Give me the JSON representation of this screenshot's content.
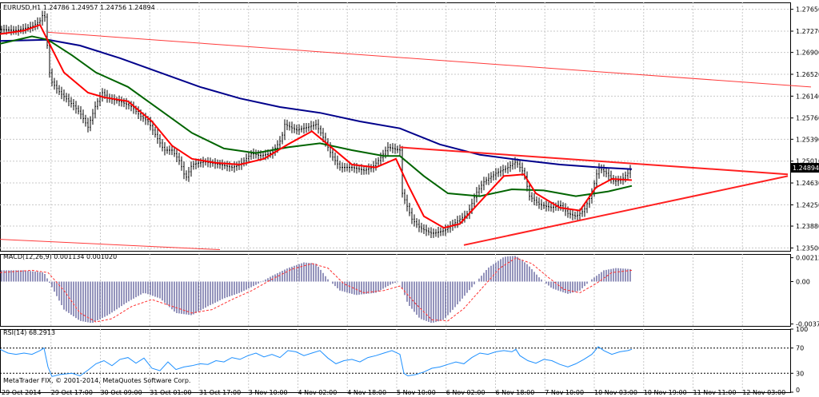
{
  "chart_data": {
    "type": "line",
    "symbol": "EURUSD,H1",
    "header": "EURUSD,H1   1.24786  1.24957  1.24756  1.24894",
    "price_ticks": [
      "1.27650",
      "1.27270",
      "1.26900",
      "1.26520",
      "1.26140",
      "1.25760",
      "1.25390",
      "1.25010",
      "1.24630",
      "1.24250",
      "1.23880",
      "1.23500"
    ],
    "price_ylim": [
      1.2345,
      1.2777
    ],
    "current_price": "1.24894",
    "x_ticks": [
      "29 Oct 2014",
      "29 Oct 17:00",
      "30 Oct 09:00",
      "31 Oct 01:00",
      "31 Oct 17:00",
      "3 Nov 10:00",
      "4 Nov 02:00",
      "4 Nov 18:00",
      "5 Nov 10:00",
      "6 Nov 02:00",
      "6 Nov 18:00",
      "7 Nov 10:00",
      "10 Nov 03:00",
      "10 Nov 19:00",
      "11 Nov 11:00",
      "12 Nov 03:00"
    ],
    "close": [
      [
        0,
        1.273
      ],
      [
        20,
        1.2728
      ],
      [
        40,
        1.2735
      ],
      [
        50,
        1.2745
      ],
      [
        55,
        1.276
      ],
      [
        58,
        1.2735
      ],
      [
        60,
        1.267
      ],
      [
        64,
        1.264
      ],
      [
        75,
        1.262
      ],
      [
        90,
        1.26
      ],
      [
        100,
        1.2585
      ],
      [
        110,
        1.256
      ],
      [
        120,
        1.26
      ],
      [
        128,
        1.262
      ],
      [
        135,
        1.261
      ],
      [
        150,
        1.2605
      ],
      [
        165,
        1.2595
      ],
      [
        175,
        1.258
      ],
      [
        185,
        1.257
      ],
      [
        195,
        1.2545
      ],
      [
        205,
        1.252
      ],
      [
        215,
        1.252
      ],
      [
        225,
        1.25
      ],
      [
        232,
        1.247
      ],
      [
        240,
        1.2495
      ],
      [
        255,
        1.25
      ],
      [
        275,
        1.2495
      ],
      [
        290,
        1.249
      ],
      [
        300,
        1.2495
      ],
      [
        315,
        1.2515
      ],
      [
        325,
        1.251
      ],
      [
        340,
        1.2515
      ],
      [
        352,
        1.254
      ],
      [
        356,
        1.2565
      ],
      [
        370,
        1.2555
      ],
      [
        385,
        1.256
      ],
      [
        395,
        1.2565
      ],
      [
        405,
        1.254
      ],
      [
        415,
        1.251
      ],
      [
        425,
        1.249
      ],
      [
        440,
        1.249
      ],
      [
        455,
        1.2485
      ],
      [
        465,
        1.249
      ],
      [
        475,
        1.2505
      ],
      [
        485,
        1.2525
      ],
      [
        500,
        1.252
      ],
      [
        503,
        1.2445
      ],
      [
        507,
        1.243
      ],
      [
        515,
        1.24
      ],
      [
        525,
        1.2385
      ],
      [
        540,
        1.2375
      ],
      [
        555,
        1.238
      ],
      [
        565,
        1.239
      ],
      [
        575,
        1.24
      ],
      [
        585,
        1.241
      ],
      [
        595,
        1.2445
      ],
      [
        605,
        1.2465
      ],
      [
        620,
        1.248
      ],
      [
        635,
        1.249
      ],
      [
        645,
        1.25
      ],
      [
        655,
        1.248
      ],
      [
        662,
        1.244
      ],
      [
        675,
        1.2425
      ],
      [
        690,
        1.242
      ],
      [
        700,
        1.2425
      ],
      [
        710,
        1.241
      ],
      [
        720,
        1.2405
      ],
      [
        730,
        1.2415
      ],
      [
        740,
        1.2445
      ],
      [
        748,
        1.249
      ],
      [
        758,
        1.248
      ],
      [
        768,
        1.2465
      ],
      [
        778,
        1.247
      ],
      [
        785,
        1.248
      ],
      [
        790,
        1.2489
      ]
    ],
    "ma_red": [
      [
        0,
        1.2722
      ],
      [
        30,
        1.2728
      ],
      [
        50,
        1.2738
      ],
      [
        60,
        1.271
      ],
      [
        80,
        1.2655
      ],
      [
        110,
        1.262
      ],
      [
        130,
        1.2612
      ],
      [
        160,
        1.2605
      ],
      [
        190,
        1.257
      ],
      [
        215,
        1.2528
      ],
      [
        240,
        1.2505
      ],
      [
        270,
        1.2498
      ],
      [
        300,
        1.2495
      ],
      [
        330,
        1.2505
      ],
      [
        360,
        1.253
      ],
      [
        390,
        1.2553
      ],
      [
        410,
        1.253
      ],
      [
        440,
        1.2495
      ],
      [
        470,
        1.249
      ],
      [
        495,
        1.2505
      ],
      [
        510,
        1.246
      ],
      [
        530,
        1.2405
      ],
      [
        555,
        1.2385
      ],
      [
        575,
        1.2392
      ],
      [
        600,
        1.243
      ],
      [
        630,
        1.2475
      ],
      [
        655,
        1.2478
      ],
      [
        670,
        1.2445
      ],
      [
        700,
        1.242
      ],
      [
        725,
        1.2415
      ],
      [
        745,
        1.2455
      ],
      [
        765,
        1.247
      ],
      [
        790,
        1.2468
      ]
    ],
    "ma_green": [
      [
        0,
        1.2705
      ],
      [
        40,
        1.2718
      ],
      [
        60,
        1.2712
      ],
      [
        90,
        1.2685
      ],
      [
        120,
        1.2655
      ],
      [
        160,
        1.263
      ],
      [
        200,
        1.259
      ],
      [
        240,
        1.255
      ],
      [
        280,
        1.2523
      ],
      [
        320,
        1.2515
      ],
      [
        360,
        1.2525
      ],
      [
        400,
        1.2532
      ],
      [
        440,
        1.252
      ],
      [
        480,
        1.251
      ],
      [
        500,
        1.251
      ],
      [
        530,
        1.2475
      ],
      [
        560,
        1.2445
      ],
      [
        600,
        1.244
      ],
      [
        640,
        1.2452
      ],
      [
        680,
        1.245
      ],
      [
        720,
        1.244
      ],
      [
        760,
        1.2448
      ],
      [
        790,
        1.2458
      ]
    ],
    "ma_blue": [
      [
        0,
        1.271
      ],
      [
        60,
        1.2712
      ],
      [
        100,
        1.2702
      ],
      [
        150,
        1.268
      ],
      [
        200,
        1.2655
      ],
      [
        250,
        1.263
      ],
      [
        300,
        1.261
      ],
      [
        350,
        1.2595
      ],
      [
        400,
        1.2585
      ],
      [
        450,
        1.257
      ],
      [
        500,
        1.2558
      ],
      [
        550,
        1.253
      ],
      [
        600,
        1.2512
      ],
      [
        650,
        1.2503
      ],
      [
        700,
        1.2495
      ],
      [
        750,
        1.249
      ],
      [
        790,
        1.2487
      ]
    ],
    "trendlines": [
      {
        "from": [
          60,
          1.2725
        ],
        "to": [
          1014,
          1.263
        ],
        "color": "#ff3b3b",
        "width": 1
      },
      {
        "from": [
          0,
          1.2365
        ],
        "to": [
          275,
          1.2347
        ],
        "color": "#ff3b3b",
        "width": 1
      },
      {
        "from": [
          500,
          1.2525
        ],
        "to": [
          985,
          1.2478
        ],
        "color": "#ff2020",
        "width": 2
      },
      {
        "from": [
          580,
          1.2355
        ],
        "to": [
          985,
          1.2475
        ],
        "color": "#ff2020",
        "width": 2
      }
    ],
    "macd": {
      "label": "MACD(12,26,9) 0.001134 0.001020",
      "ticks": [
        "0.00212",
        "0.00",
        "-0.003781"
      ],
      "ylim": [
        -0.00395,
        0.00245
      ],
      "hist": [
        [
          0,
          0.001
        ],
        [
          30,
          0.001
        ],
        [
          55,
          0.0008
        ],
        [
          65,
          -0.0005
        ],
        [
          80,
          -0.0025
        ],
        [
          100,
          -0.0035
        ],
        [
          115,
          -0.0037
        ],
        [
          135,
          -0.003
        ],
        [
          160,
          -0.0018
        ],
        [
          180,
          -0.001
        ],
        [
          200,
          -0.0015
        ],
        [
          220,
          -0.0028
        ],
        [
          240,
          -0.003
        ],
        [
          260,
          -0.0022
        ],
        [
          280,
          -0.0015
        ],
        [
          300,
          -0.001
        ],
        [
          320,
          -0.0003
        ],
        [
          340,
          0.0005
        ],
        [
          360,
          0.0012
        ],
        [
          380,
          0.0017
        ],
        [
          395,
          0.0016
        ],
        [
          410,
          0.0002
        ],
        [
          425,
          -0.0008
        ],
        [
          445,
          -0.0012
        ],
        [
          470,
          -0.001
        ],
        [
          490,
          -0.0002
        ],
        [
          500,
          0.0
        ],
        [
          510,
          -0.002
        ],
        [
          525,
          -0.0033
        ],
        [
          540,
          -0.0037
        ],
        [
          555,
          -0.0034
        ],
        [
          570,
          -0.0022
        ],
        [
          590,
          -0.0005
        ],
        [
          610,
          0.0012
        ],
        [
          630,
          0.0022
        ],
        [
          645,
          0.0023
        ],
        [
          660,
          0.0015
        ],
        [
          675,
          0.0003
        ],
        [
          690,
          -0.0006
        ],
        [
          710,
          -0.0011
        ],
        [
          725,
          -0.0008
        ],
        [
          740,
          0.0002
        ],
        [
          755,
          0.001
        ],
        [
          770,
          0.0012
        ],
        [
          790,
          0.0011
        ]
      ],
      "signal": [
        [
          0,
          0.0008
        ],
        [
          40,
          0.001
        ],
        [
          60,
          0.0008
        ],
        [
          80,
          -0.0008
        ],
        [
          100,
          -0.0028
        ],
        [
          120,
          -0.0036
        ],
        [
          140,
          -0.0033
        ],
        [
          165,
          -0.0022
        ],
        [
          190,
          -0.0016
        ],
        [
          215,
          -0.0022
        ],
        [
          240,
          -0.0028
        ],
        [
          265,
          -0.0025
        ],
        [
          290,
          -0.0016
        ],
        [
          315,
          -0.0008
        ],
        [
          340,
          0.0002
        ],
        [
          365,
          0.0011
        ],
        [
          390,
          0.0016
        ],
        [
          410,
          0.0012
        ],
        [
          430,
          -0.0002
        ],
        [
          455,
          -0.001
        ],
        [
          480,
          -0.0008
        ],
        [
          500,
          -0.0004
        ],
        [
          520,
          -0.002
        ],
        [
          540,
          -0.0034
        ],
        [
          560,
          -0.0035
        ],
        [
          580,
          -0.0024
        ],
        [
          600,
          -0.0008
        ],
        [
          625,
          0.0012
        ],
        [
          645,
          0.0021
        ],
        [
          665,
          0.0016
        ],
        [
          685,
          0.0004
        ],
        [
          705,
          -0.0007
        ],
        [
          725,
          -0.001
        ],
        [
          745,
          -0.0002
        ],
        [
          765,
          0.0008
        ],
        [
          790,
          0.001
        ]
      ]
    },
    "rsi": {
      "label": "RSI(14) 68.2913",
      "ticks": [
        "100",
        "70",
        "30",
        "0"
      ],
      "levels": [
        70,
        30
      ],
      "ylim": [
        0,
        100
      ],
      "values": [
        [
          0,
          68
        ],
        [
          10,
          62
        ],
        [
          20,
          60
        ],
        [
          30,
          62
        ],
        [
          40,
          60
        ],
        [
          50,
          66
        ],
        [
          55,
          70
        ],
        [
          60,
          40
        ],
        [
          65,
          25
        ],
        [
          75,
          28
        ],
        [
          90,
          30
        ],
        [
          100,
          26
        ],
        [
          110,
          35
        ],
        [
          120,
          45
        ],
        [
          130,
          50
        ],
        [
          140,
          42
        ],
        [
          150,
          52
        ],
        [
          160,
          55
        ],
        [
          170,
          46
        ],
        [
          180,
          54
        ],
        [
          190,
          38
        ],
        [
          200,
          34
        ],
        [
          210,
          48
        ],
        [
          220,
          36
        ],
        [
          230,
          40
        ],
        [
          240,
          42
        ],
        [
          250,
          45
        ],
        [
          260,
          44
        ],
        [
          270,
          50
        ],
        [
          280,
          48
        ],
        [
          290,
          55
        ],
        [
          300,
          52
        ],
        [
          310,
          58
        ],
        [
          320,
          62
        ],
        [
          330,
          56
        ],
        [
          340,
          60
        ],
        [
          350,
          55
        ],
        [
          360,
          66
        ],
        [
          370,
          64
        ],
        [
          380,
          58
        ],
        [
          390,
          62
        ],
        [
          400,
          66
        ],
        [
          410,
          54
        ],
        [
          420,
          45
        ],
        [
          430,
          50
        ],
        [
          440,
          52
        ],
        [
          450,
          48
        ],
        [
          460,
          55
        ],
        [
          470,
          58
        ],
        [
          480,
          62
        ],
        [
          490,
          66
        ],
        [
          500,
          60
        ],
        [
          505,
          30
        ],
        [
          510,
          26
        ],
        [
          520,
          28
        ],
        [
          530,
          32
        ],
        [
          540,
          38
        ],
        [
          550,
          40
        ],
        [
          560,
          44
        ],
        [
          570,
          48
        ],
        [
          580,
          45
        ],
        [
          590,
          55
        ],
        [
          600,
          62
        ],
        [
          610,
          60
        ],
        [
          620,
          64
        ],
        [
          630,
          66
        ],
        [
          640,
          64
        ],
        [
          645,
          68
        ],
        [
          650,
          58
        ],
        [
          660,
          50
        ],
        [
          670,
          46
        ],
        [
          680,
          52
        ],
        [
          690,
          50
        ],
        [
          700,
          44
        ],
        [
          710,
          40
        ],
        [
          720,
          45
        ],
        [
          730,
          52
        ],
        [
          740,
          60
        ],
        [
          748,
          72
        ],
        [
          755,
          66
        ],
        [
          765,
          60
        ],
        [
          775,
          64
        ],
        [
          785,
          66
        ],
        [
          790,
          68
        ]
      ]
    },
    "copyright": "MetaTrader FIX, © 2001-2014, MetaQuotes Software Corp.",
    "colors": {
      "grid": "#c8c8c8",
      "red": "#ff0000",
      "green": "#006400",
      "blue": "#00008b",
      "trend": "#ff2020",
      "hist": "#2a2a7a",
      "signal": "#ff3030",
      "rsi": "#1e90ff"
    }
  }
}
